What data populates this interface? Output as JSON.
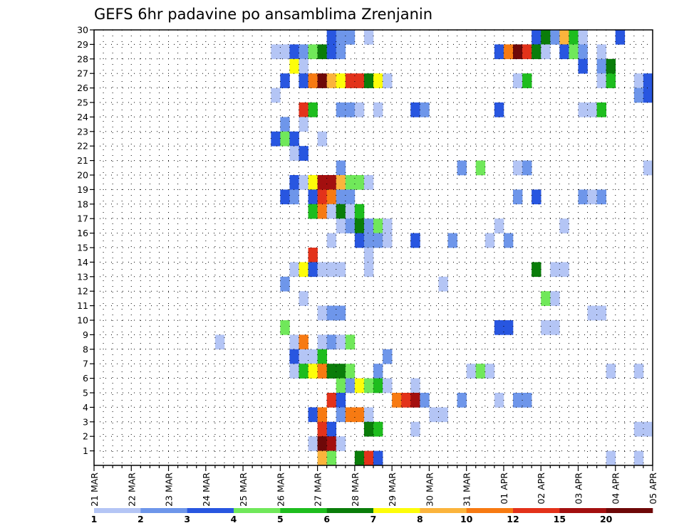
{
  "chart_data": {
    "type": "heatmap",
    "title": "GEFS 6hr padavine po ansamblima Zrenjanin",
    "xlabel": "",
    "ylabel": "",
    "y_range": [
      0,
      30
    ],
    "y_ticks": [
      "1",
      "2",
      "3",
      "4",
      "5",
      "6",
      "7",
      "8",
      "9",
      "10",
      "11",
      "12",
      "13",
      "14",
      "15",
      "16",
      "17",
      "18",
      "19",
      "20",
      "21",
      "22",
      "23",
      "24",
      "25",
      "26",
      "27",
      "28",
      "29",
      "30"
    ],
    "x_range_steps": [
      0,
      60
    ],
    "x_step_hours": 6,
    "x_ticks": [
      {
        "label": "21 MAR",
        "step": 0
      },
      {
        "label": "22 MAR",
        "step": 4
      },
      {
        "label": "23 MAR",
        "step": 8
      },
      {
        "label": "24 MAR",
        "step": 12
      },
      {
        "label": "25 MAR",
        "step": 16
      },
      {
        "label": "26 MAR",
        "step": 20
      },
      {
        "label": "27 MAR",
        "step": 24
      },
      {
        "label": "28 MAR",
        "step": 28
      },
      {
        "label": "29 MAR",
        "step": 32
      },
      {
        "label": "30 MAR",
        "step": 36
      },
      {
        "label": "31 MAR",
        "step": 40
      },
      {
        "label": "01 APR",
        "step": 44
      },
      {
        "label": "02 APR",
        "step": 48
      },
      {
        "label": "03 APR",
        "step": 52
      },
      {
        "label": "04 APR",
        "step": 56
      },
      {
        "label": "05 APR",
        "step": 60
      }
    ],
    "grid": "dotted",
    "legend_position": "bottom",
    "legend_levels": [
      "1",
      "2",
      "3",
      "4",
      "5",
      "6",
      "7",
      "8",
      "10",
      "12",
      "15",
      "20"
    ],
    "legend_colors": [
      "#b4c5f5",
      "#6e96ea",
      "#2856e0",
      "#70e85a",
      "#1ebd1e",
      "#0a7d0a",
      "#fdfd0a",
      "#fbb43c",
      "#f77a12",
      "#e3321a",
      "#a30f0f",
      "#6e0808"
    ],
    "cell_note": "each cell is [member, time_step, class]; class indexes legend_colors (0-based); cell spans one 6h step",
    "cells": [
      [
        30,
        23,
        0
      ],
      [
        30,
        24,
        1
      ],
      [
        30,
        27,
        2
      ],
      [
        30,
        28,
        0
      ],
      [
        30,
        29,
        0
      ],
      [
        30,
        43,
        0
      ],
      [
        30,
        47,
        1
      ],
      [
        30,
        53,
        0
      ],
      [
        30,
        55,
        1
      ],
      [
        29,
        25,
        2
      ],
      [
        29,
        26,
        1
      ],
      [
        29,
        27,
        1
      ],
      [
        29,
        29,
        0
      ],
      [
        29,
        47,
        2
      ],
      [
        29,
        48,
        5
      ],
      [
        29,
        49,
        1
      ],
      [
        29,
        50,
        7
      ],
      [
        29,
        51,
        4
      ],
      [
        29,
        52,
        0
      ],
      [
        29,
        56,
        2
      ],
      [
        28,
        19,
        0
      ],
      [
        28,
        20,
        0
      ],
      [
        28,
        21,
        2
      ],
      [
        28,
        22,
        1
      ],
      [
        28,
        23,
        3
      ],
      [
        28,
        24,
        5
      ],
      [
        28,
        25,
        2
      ],
      [
        28,
        26,
        1
      ],
      [
        28,
        43,
        2
      ],
      [
        28,
        44,
        8
      ],
      [
        28,
        45,
        11
      ],
      [
        28,
        46,
        9
      ],
      [
        28,
        47,
        5
      ],
      [
        28,
        48,
        0
      ],
      [
        28,
        50,
        2
      ],
      [
        28,
        51,
        3
      ],
      [
        28,
        52,
        1
      ],
      [
        28,
        54,
        0
      ],
      [
        27,
        21,
        6
      ],
      [
        27,
        22,
        0
      ],
      [
        27,
        52,
        2
      ],
      [
        27,
        54,
        1
      ],
      [
        27,
        55,
        5
      ],
      [
        26,
        20,
        2
      ],
      [
        26,
        22,
        2
      ],
      [
        26,
        23,
        8
      ],
      [
        26,
        24,
        11
      ],
      [
        26,
        25,
        7
      ],
      [
        26,
        26,
        6
      ],
      [
        26,
        27,
        9
      ],
      [
        26,
        28,
        9
      ],
      [
        26,
        29,
        5
      ],
      [
        26,
        30,
        6
      ],
      [
        26,
        31,
        0
      ],
      [
        26,
        45,
        0
      ],
      [
        26,
        46,
        4
      ],
      [
        26,
        54,
        0
      ],
      [
        26,
        55,
        4
      ],
      [
        26,
        58,
        0
      ],
      [
        26,
        59,
        2
      ],
      [
        25,
        19,
        0
      ],
      [
        25,
        58,
        1
      ],
      [
        25,
        59,
        2
      ],
      [
        25,
        60,
        1
      ],
      [
        24,
        22,
        9
      ],
      [
        24,
        23,
        4
      ],
      [
        24,
        26,
        1
      ],
      [
        24,
        27,
        1
      ],
      [
        24,
        28,
        0
      ],
      [
        24,
        30,
        0
      ],
      [
        24,
        34,
        2
      ],
      [
        24,
        35,
        1
      ],
      [
        24,
        43,
        2
      ],
      [
        24,
        52,
        0
      ],
      [
        24,
        53,
        0
      ],
      [
        24,
        54,
        4
      ],
      [
        24,
        60,
        0
      ],
      [
        23,
        20,
        1
      ],
      [
        23,
        22,
        0
      ],
      [
        22,
        19,
        2
      ],
      [
        22,
        20,
        3
      ],
      [
        22,
        21,
        2
      ],
      [
        22,
        24,
        0
      ],
      [
        21,
        21,
        0
      ],
      [
        21,
        22,
        2
      ],
      [
        20,
        26,
        1
      ],
      [
        20,
        39,
        1
      ],
      [
        20,
        41,
        3
      ],
      [
        20,
        45,
        0
      ],
      [
        20,
        46,
        1
      ],
      [
        20,
        59,
        0
      ],
      [
        19,
        21,
        2
      ],
      [
        19,
        22,
        0
      ],
      [
        19,
        23,
        6
      ],
      [
        19,
        24,
        10
      ],
      [
        19,
        25,
        10
      ],
      [
        19,
        26,
        7
      ],
      [
        19,
        27,
        3
      ],
      [
        19,
        28,
        3
      ],
      [
        19,
        29,
        0
      ],
      [
        18,
        20,
        2
      ],
      [
        18,
        21,
        1
      ],
      [
        18,
        23,
        2
      ],
      [
        18,
        24,
        9
      ],
      [
        18,
        25,
        8
      ],
      [
        18,
        26,
        1
      ],
      [
        18,
        27,
        1
      ],
      [
        18,
        45,
        1
      ],
      [
        18,
        47,
        2
      ],
      [
        18,
        52,
        1
      ],
      [
        18,
        53,
        0
      ],
      [
        18,
        54,
        1
      ],
      [
        17,
        23,
        4
      ],
      [
        17,
        24,
        8
      ],
      [
        17,
        25,
        0
      ],
      [
        17,
        26,
        5
      ],
      [
        17,
        27,
        0
      ],
      [
        17,
        28,
        4
      ],
      [
        16,
        26,
        0
      ],
      [
        16,
        27,
        1
      ],
      [
        16,
        28,
        5
      ],
      [
        16,
        29,
        1
      ],
      [
        16,
        30,
        3
      ],
      [
        16,
        31,
        0
      ],
      [
        16,
        43,
        0
      ],
      [
        16,
        50,
        0
      ],
      [
        15,
        25,
        0
      ],
      [
        15,
        28,
        2
      ],
      [
        15,
        29,
        1
      ],
      [
        15,
        30,
        1
      ],
      [
        15,
        31,
        0
      ],
      [
        15,
        34,
        2
      ],
      [
        15,
        38,
        1
      ],
      [
        15,
        42,
        0
      ],
      [
        15,
        44,
        1
      ],
      [
        14,
        23,
        9
      ],
      [
        14,
        29,
        0
      ],
      [
        13,
        21,
        0
      ],
      [
        13,
        22,
        6
      ],
      [
        13,
        23,
        2
      ],
      [
        13,
        24,
        0
      ],
      [
        13,
        25,
        0
      ],
      [
        13,
        26,
        0
      ],
      [
        13,
        29,
        0
      ],
      [
        13,
        47,
        5
      ],
      [
        13,
        49,
        0
      ],
      [
        13,
        50,
        0
      ],
      [
        12,
        20,
        1
      ],
      [
        12,
        37,
        0
      ],
      [
        11,
        22,
        0
      ],
      [
        11,
        48,
        3
      ],
      [
        11,
        49,
        0
      ],
      [
        10,
        24,
        0
      ],
      [
        10,
        25,
        1
      ],
      [
        10,
        26,
        1
      ],
      [
        10,
        53,
        0
      ],
      [
        10,
        54,
        0
      ],
      [
        9,
        20,
        3
      ],
      [
        9,
        43,
        2
      ],
      [
        9,
        44,
        2
      ],
      [
        9,
        48,
        0
      ],
      [
        9,
        49,
        0
      ],
      [
        8,
        13,
        0
      ],
      [
        8,
        21,
        0
      ],
      [
        8,
        22,
        8
      ],
      [
        8,
        24,
        0
      ],
      [
        8,
        25,
        1
      ],
      [
        8,
        26,
        0
      ],
      [
        8,
        27,
        3
      ],
      [
        7,
        21,
        2
      ],
      [
        7,
        22,
        0
      ],
      [
        7,
        23,
        0
      ],
      [
        7,
        24,
        4
      ],
      [
        7,
        31,
        1
      ],
      [
        6,
        21,
        0
      ],
      [
        6,
        22,
        4
      ],
      [
        6,
        23,
        6
      ],
      [
        6,
        24,
        8
      ],
      [
        6,
        25,
        5
      ],
      [
        6,
        26,
        5
      ],
      [
        6,
        27,
        3
      ],
      [
        6,
        30,
        1
      ],
      [
        6,
        40,
        0
      ],
      [
        6,
        41,
        3
      ],
      [
        6,
        42,
        0
      ],
      [
        6,
        55,
        0
      ],
      [
        6,
        58,
        0
      ],
      [
        5,
        26,
        3
      ],
      [
        5,
        27,
        1
      ],
      [
        5,
        28,
        6
      ],
      [
        5,
        29,
        3
      ],
      [
        5,
        30,
        4
      ],
      [
        5,
        31,
        0
      ],
      [
        5,
        34,
        0
      ],
      [
        4,
        25,
        9
      ],
      [
        4,
        26,
        2
      ],
      [
        4,
        32,
        8
      ],
      [
        4,
        33,
        9
      ],
      [
        4,
        34,
        10
      ],
      [
        4,
        35,
        1
      ],
      [
        4,
        39,
        1
      ],
      [
        4,
        43,
        0
      ],
      [
        4,
        45,
        1
      ],
      [
        4,
        46,
        1
      ],
      [
        3,
        23,
        2
      ],
      [
        3,
        24,
        8
      ],
      [
        3,
        26,
        1
      ],
      [
        3,
        27,
        8
      ],
      [
        3,
        28,
        8
      ],
      [
        3,
        29,
        0
      ],
      [
        3,
        36,
        0
      ],
      [
        3,
        37,
        0
      ],
      [
        2,
        24,
        9
      ],
      [
        2,
        25,
        2
      ],
      [
        2,
        29,
        5
      ],
      [
        2,
        30,
        4
      ],
      [
        2,
        34,
        0
      ],
      [
        2,
        58,
        0
      ],
      [
        2,
        59,
        0
      ],
      [
        1,
        23,
        0
      ],
      [
        1,
        24,
        11
      ],
      [
        1,
        25,
        10
      ],
      [
        1,
        26,
        0
      ],
      [
        0,
        24,
        7
      ],
      [
        0,
        25,
        3
      ],
      [
        0,
        28,
        5
      ],
      [
        0,
        29,
        9
      ],
      [
        0,
        30,
        2
      ],
      [
        0,
        55,
        0
      ],
      [
        0,
        58,
        0
      ]
    ]
  }
}
